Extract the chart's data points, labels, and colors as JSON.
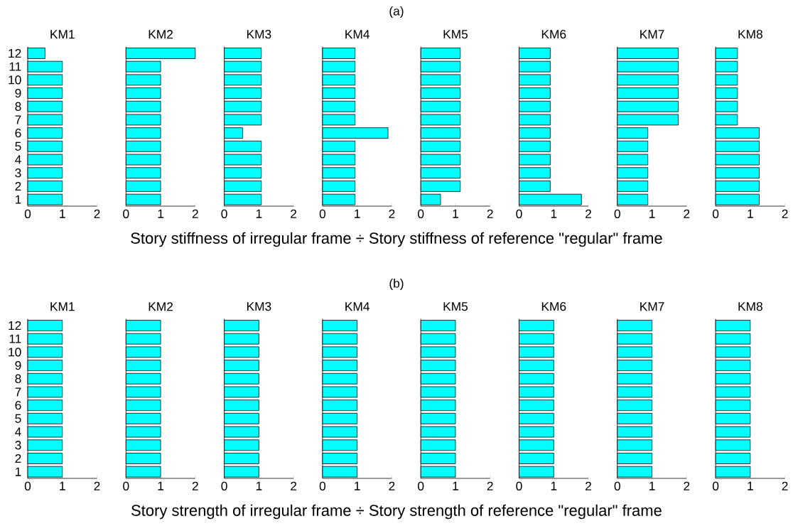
{
  "chart_data": [
    {
      "type": "bar",
      "orientation": "horizontal",
      "title": "KM1",
      "categories": [
        "12",
        "11",
        "10",
        "9",
        "8",
        "7",
        "6",
        "5",
        "4",
        "3",
        "2",
        "1"
      ],
      "values": [
        0.5,
        1,
        1,
        1,
        1,
        1,
        1,
        1,
        1,
        1,
        1,
        1
      ],
      "color": "#00ffff",
      "xlim": [
        0,
        2
      ],
      "xticks": [
        0,
        1,
        2
      ],
      "annotations": [
        "(a)",
        "Story stiffness of irregular frame ÷ Story stiffness of reference \"regular\" frame"
      ]
    },
    {
      "type": "bar",
      "orientation": "horizontal",
      "title": "KM2",
      "categories": [
        "12",
        "11",
        "10",
        "9",
        "8",
        "7",
        "6",
        "5",
        "4",
        "3",
        "2",
        "1"
      ],
      "values": [
        2,
        1,
        1,
        1,
        1,
        1,
        1,
        1,
        1,
        1,
        1,
        1
      ],
      "color": "#00ffff",
      "xlim": [
        0,
        2
      ],
      "xticks": [
        0,
        1,
        2
      ],
      "tick_labels": "x"
    },
    {
      "type": "bar",
      "orientation": "horizontal",
      "title": "KM3",
      "categories": [
        "12",
        "11",
        "10",
        "9",
        "8",
        "7",
        "6",
        "5",
        "4",
        "3",
        "2",
        "1"
      ],
      "values": [
        1.07,
        1.07,
        1.07,
        1.07,
        1.07,
        1.07,
        0.53,
        1.07,
        1.07,
        1.07,
        1.07,
        1.07
      ],
      "color": "#00ffff",
      "xlim": [
        0,
        2
      ],
      "xticks": [
        0,
        1,
        2
      ],
      "tick_labels": "x"
    },
    {
      "type": "bar",
      "orientation": "horizontal",
      "title": "KM4",
      "categories": [
        "12",
        "11",
        "10",
        "9",
        "8",
        "7",
        "6",
        "5",
        "4",
        "3",
        "2",
        "1"
      ],
      "values": [
        0.94,
        0.94,
        0.94,
        0.94,
        0.94,
        0.94,
        1.89,
        0.94,
        0.94,
        0.94,
        0.94,
        0.94
      ],
      "color": "#00ffff",
      "xlim": [
        0,
        2
      ],
      "xticks": [
        0,
        1,
        2
      ],
      "tick_labels": "x"
    },
    {
      "type": "bar",
      "orientation": "horizontal",
      "title": "KM5",
      "categories": [
        "12",
        "11",
        "10",
        "9",
        "8",
        "7",
        "6",
        "5",
        "4",
        "3",
        "2",
        "1"
      ],
      "values": [
        1.14,
        1.14,
        1.14,
        1.14,
        1.14,
        1.14,
        1.14,
        1.14,
        1.14,
        1.14,
        1.14,
        0.57
      ],
      "color": "#00ffff",
      "xlim": [
        0,
        2
      ],
      "xticks": [
        0,
        1,
        2
      ],
      "tick_labels": "x"
    },
    {
      "type": "bar",
      "orientation": "horizontal",
      "title": "KM6",
      "categories": [
        "12",
        "11",
        "10",
        "9",
        "8",
        "7",
        "6",
        "5",
        "4",
        "3",
        "2",
        "1"
      ],
      "values": [
        0.9,
        0.9,
        0.9,
        0.9,
        0.9,
        0.9,
        0.9,
        0.9,
        0.9,
        0.9,
        0.9,
        1.8
      ],
      "color": "#00ffff",
      "xlim": [
        0,
        2
      ],
      "xticks": [
        0,
        1,
        2
      ],
      "tick_labels": "x"
    },
    {
      "type": "bar",
      "orientation": "horizontal",
      "title": "KM7",
      "categories": [
        "12",
        "11",
        "10",
        "9",
        "8",
        "7",
        "6",
        "5",
        "4",
        "3",
        "2",
        "1"
      ],
      "values": [
        1.76,
        1.76,
        1.76,
        1.76,
        1.76,
        1.76,
        0.88,
        0.88,
        0.88,
        0.88,
        0.88,
        0.88
      ],
      "color": "#00ffff",
      "xlim": [
        0,
        2
      ],
      "xticks": [
        0,
        1,
        2
      ],
      "tick_labels": "x"
    },
    {
      "type": "bar",
      "orientation": "horizontal",
      "title": "KM8",
      "categories": [
        "12",
        "11",
        "10",
        "9",
        "8",
        "7",
        "6",
        "5",
        "4",
        "3",
        "2",
        "1"
      ],
      "values": [
        0.63,
        0.63,
        0.63,
        0.63,
        0.63,
        0.63,
        1.26,
        1.26,
        1.26,
        1.26,
        1.26,
        1.26
      ],
      "color": "#00ffff",
      "xlim": [
        0,
        2
      ],
      "xticks": [
        0,
        1,
        2
      ],
      "tick_labels": "x"
    },
    {
      "type": "bar",
      "orientation": "horizontal",
      "title": "KM1",
      "categories": [
        "12",
        "11",
        "10",
        "9",
        "8",
        "7",
        "6",
        "5",
        "4",
        "3",
        "2",
        "1"
      ],
      "values": [
        1,
        1,
        1,
        1,
        1,
        1,
        1,
        1,
        1,
        1,
        1,
        1
      ],
      "color": "#00ffff",
      "xlim": [
        0,
        2
      ],
      "xticks": [
        0,
        1,
        2
      ],
      "annotations": [
        "(b)",
        "Story strength of irregular frame ÷ Story strength of reference \"regular\" frame"
      ]
    },
    {
      "type": "bar",
      "orientation": "horizontal",
      "title": "KM2",
      "categories": [
        "12",
        "11",
        "10",
        "9",
        "8",
        "7",
        "6",
        "5",
        "4",
        "3",
        "2",
        "1"
      ],
      "values": [
        1,
        1,
        1,
        1,
        1,
        1,
        1,
        1,
        1,
        1,
        1,
        1
      ],
      "color": "#00ffff",
      "xlim": [
        0,
        2
      ],
      "xticks": [
        0,
        1,
        2
      ],
      "tick_labels": "x"
    },
    {
      "type": "bar",
      "orientation": "horizontal",
      "title": "KM3",
      "categories": [
        "12",
        "11",
        "10",
        "9",
        "8",
        "7",
        "6",
        "5",
        "4",
        "3",
        "2",
        "1"
      ],
      "values": [
        1,
        1,
        1,
        1,
        1,
        1,
        1,
        1,
        1,
        1,
        1,
        1
      ],
      "color": "#00ffff",
      "xlim": [
        0,
        2
      ],
      "xticks": [
        0,
        1,
        2
      ],
      "tick_labels": "x"
    },
    {
      "type": "bar",
      "orientation": "horizontal",
      "title": "KM4",
      "categories": [
        "12",
        "11",
        "10",
        "9",
        "8",
        "7",
        "6",
        "5",
        "4",
        "3",
        "2",
        "1"
      ],
      "values": [
        1,
        1,
        1,
        1,
        1,
        1,
        1,
        1,
        1,
        1,
        1,
        1
      ],
      "color": "#00ffff",
      "xlim": [
        0,
        2
      ],
      "xticks": [
        0,
        1,
        2
      ],
      "tick_labels": "x"
    },
    {
      "type": "bar",
      "orientation": "horizontal",
      "title": "KM5",
      "categories": [
        "12",
        "11",
        "10",
        "9",
        "8",
        "7",
        "6",
        "5",
        "4",
        "3",
        "2",
        "1"
      ],
      "values": [
        1,
        1,
        1,
        1,
        1,
        1,
        1,
        1,
        1,
        1,
        1,
        1
      ],
      "color": "#00ffff",
      "xlim": [
        0,
        2
      ],
      "xticks": [
        0,
        1,
        2
      ],
      "tick_labels": "x"
    },
    {
      "type": "bar",
      "orientation": "horizontal",
      "title": "KM6",
      "categories": [
        "12",
        "11",
        "10",
        "9",
        "8",
        "7",
        "6",
        "5",
        "4",
        "3",
        "2",
        "1"
      ],
      "values": [
        1,
        1,
        1,
        1,
        1,
        1,
        1,
        1,
        1,
        1,
        1,
        1
      ],
      "color": "#00ffff",
      "xlim": [
        0,
        2
      ],
      "xticks": [
        0,
        1,
        2
      ],
      "tick_labels": "x"
    },
    {
      "type": "bar",
      "orientation": "horizontal",
      "title": "KM7",
      "categories": [
        "12",
        "11",
        "10",
        "9",
        "8",
        "7",
        "6",
        "5",
        "4",
        "3",
        "2",
        "1"
      ],
      "values": [
        1,
        1,
        1,
        1,
        1,
        1,
        1,
        1,
        1,
        1,
        1,
        1
      ],
      "color": "#00ffff",
      "xlim": [
        0,
        2
      ],
      "xticks": [
        0,
        1,
        2
      ],
      "tick_labels": "x"
    },
    {
      "type": "bar",
      "orientation": "horizontal",
      "title": "KM8",
      "categories": [
        "12",
        "11",
        "10",
        "9",
        "8",
        "7",
        "6",
        "5",
        "4",
        "3",
        "2",
        "1"
      ],
      "values": [
        1,
        1,
        1,
        1,
        1,
        1,
        1,
        1,
        1,
        1,
        1,
        1
      ],
      "color": "#00ffff",
      "xlim": [
        0,
        2
      ],
      "xticks": [
        0,
        1,
        2
      ],
      "tick_labels": "x"
    }
  ]
}
